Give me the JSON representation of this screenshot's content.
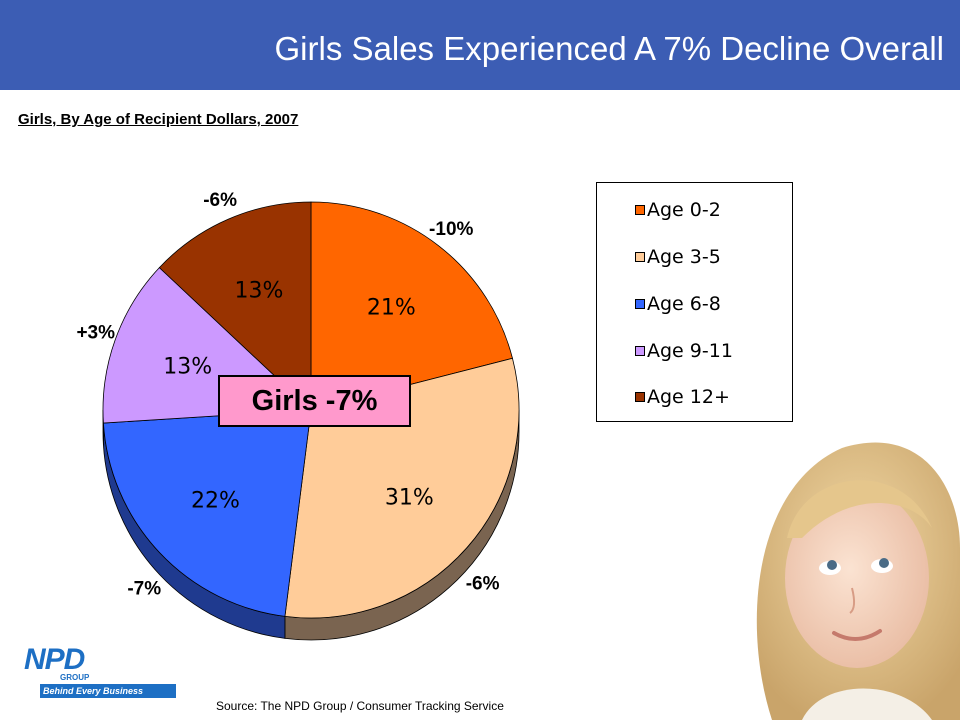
{
  "header": {
    "title": "Girls Sales Experienced A 7% Decline Overall"
  },
  "chart_data": {
    "type": "pie",
    "title": "Girls, By Age of Recipient Dollars, 2007",
    "slices": [
      {
        "label": "Age 0-2",
        "value": 21,
        "value_label": "21%",
        "change": "-10%",
        "color": "#ff6600",
        "side_color": "#8a3a08"
      },
      {
        "label": "Age 3-5",
        "value": 31,
        "value_label": "31%",
        "change": "-6%",
        "color": "#ffcc99",
        "side_color": "#7a6450"
      },
      {
        "label": "Age 6-8",
        "value": 22,
        "value_label": "22%",
        "change": "-7%",
        "color": "#3366ff",
        "side_color": "#1f3a8f"
      },
      {
        "label": "Age 9-11",
        "value": 13,
        "value_label": "13%",
        "change": "+3%",
        "color": "#cc99ff",
        "side_color": "#7a5c99"
      },
      {
        "label": "Age 12+",
        "value": 13,
        "value_label": "13%",
        "change": "-6%",
        "color": "#993300",
        "side_color": "#5a1e00"
      }
    ],
    "legend": {
      "placement": "right",
      "entries": [
        "Age 0-2",
        "Age 3-5",
        "Age 6-8",
        "Age 9-11",
        "Age 12+"
      ]
    },
    "annotation": "Girls -7%"
  },
  "footer": {
    "source": "Source:  The NPD Group / Consumer Tracking Service",
    "logo_name": "NPD",
    "logo_group": "GROUP",
    "logo_tagline": "Behind Every Business Decision"
  },
  "icons": {
    "logo": "npd-logo-icon",
    "photo": "girl-photo-icon"
  }
}
